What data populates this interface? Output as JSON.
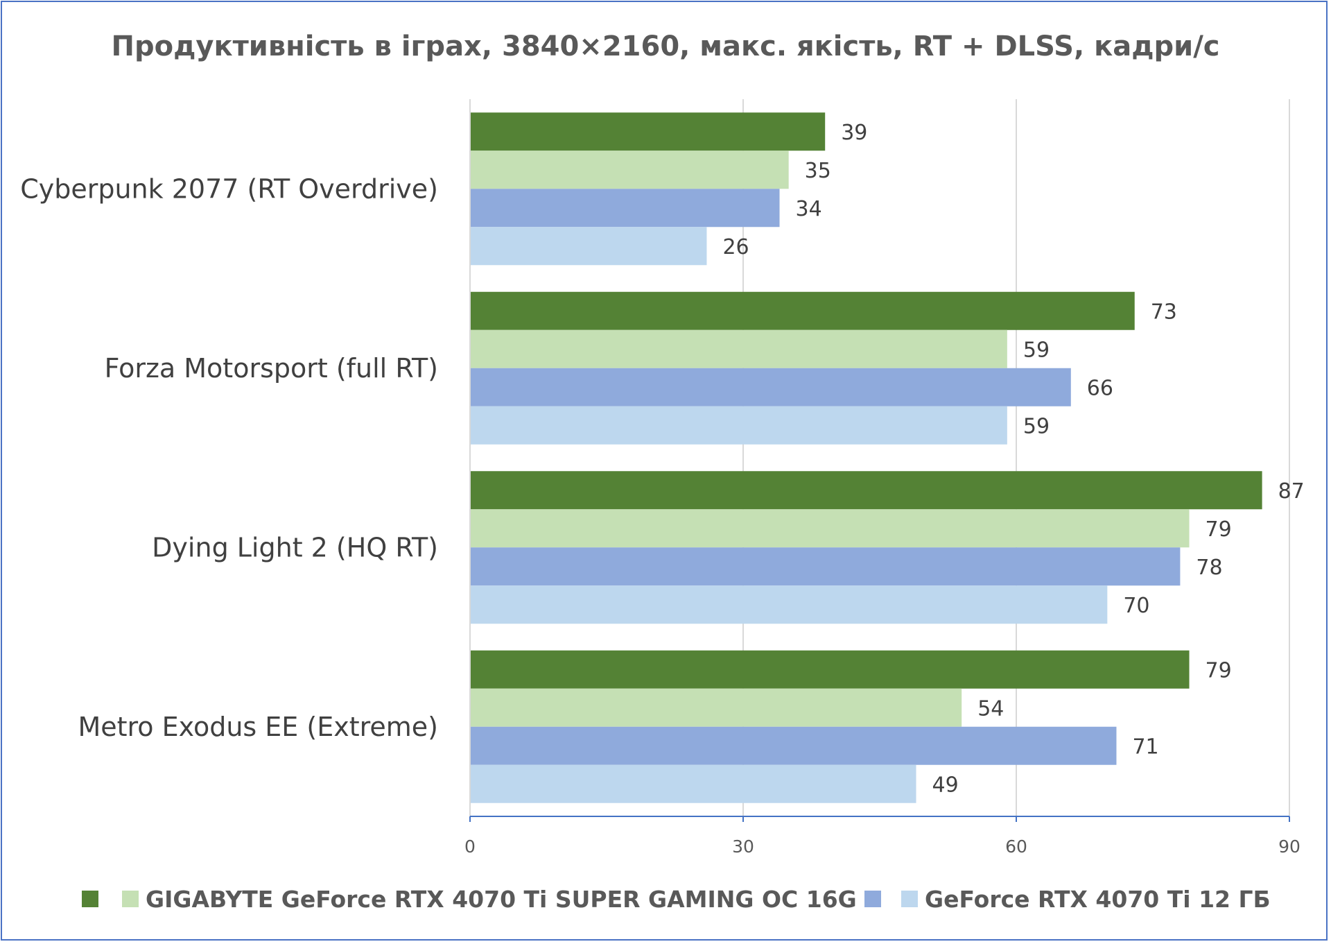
{
  "chart_data": {
    "type": "bar",
    "orientation": "horizontal",
    "title": "Продуктивність в іграх, 3840×2160, макс. якість, RT + DLSS, кадри/с",
    "categories": [
      "Cyberpunk 2077 (RT Overdrive)",
      "Forza Motorsport (full RT)",
      "Dying Light 2 (HQ RT)",
      "Metro Exodus EE (Extreme)"
    ],
    "series": [
      {
        "name": "GIGABYTE GeForce RTX 4070 Ti SUPER GAMING OC 16G",
        "color": "#548235",
        "values": [
          39,
          73,
          87,
          79
        ]
      },
      {
        "color": "#c5e0b4",
        "values": [
          35,
          59,
          79,
          54
        ]
      },
      {
        "name": "GeForce RTX 4070 Ti 12 ГБ",
        "color": "#8faadc",
        "values": [
          34,
          66,
          78,
          71
        ]
      },
      {
        "color": "#bdd7ee",
        "values": [
          26,
          59,
          70,
          49
        ]
      }
    ],
    "xlim": [
      0,
      90
    ],
    "xticks": [
      0,
      30,
      60,
      90
    ],
    "grid": "vertical",
    "legend": "bottom",
    "data_labels": true
  }
}
